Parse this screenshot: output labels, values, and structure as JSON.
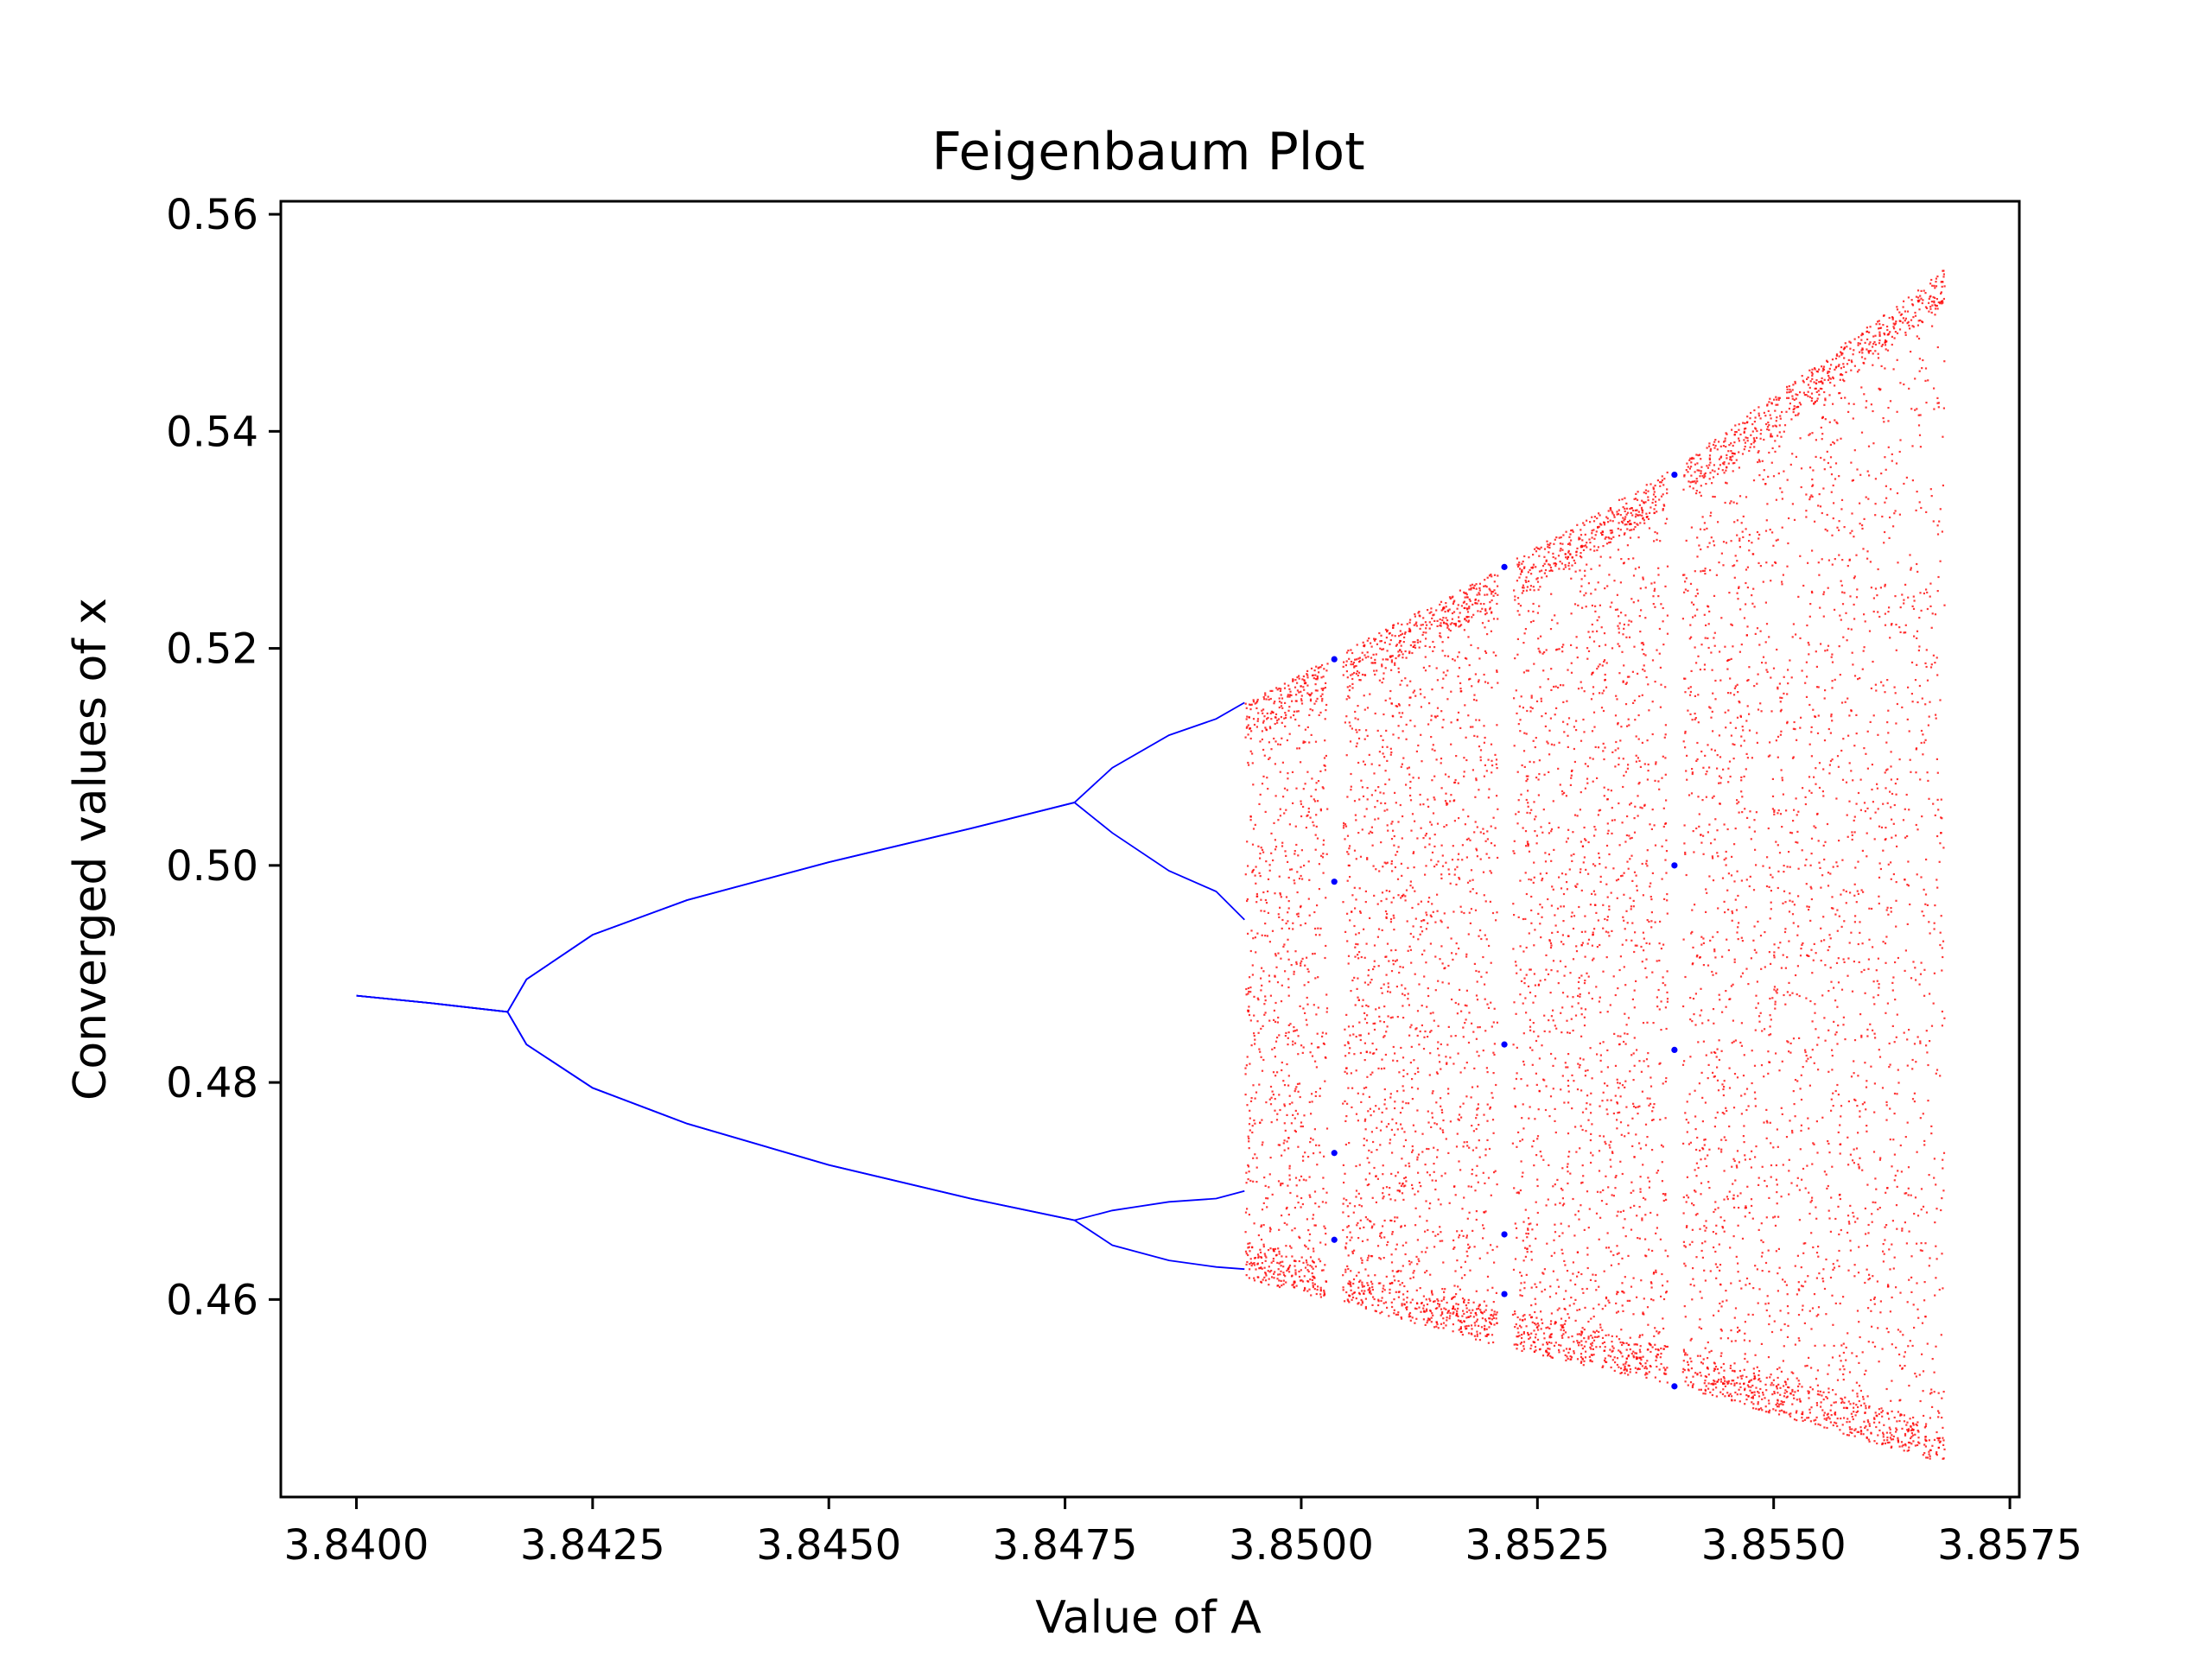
{
  "chart_data": {
    "type": "scatter",
    "title": "Feigenbaum Plot",
    "xlabel": "Value of A",
    "ylabel": "Converged values of x",
    "xlim": [
      3.8392,
      3.8576
    ],
    "ylim": [
      0.4418,
      0.5612
    ],
    "xticks": [
      3.84,
      3.8425,
      3.845,
      3.8475,
      3.85,
      3.8525,
      3.855,
      3.8575
    ],
    "xtick_labels": [
      "3.8400",
      "3.8425",
      "3.8450",
      "3.8475",
      "3.8500",
      "3.8525",
      "3.8550",
      "3.8575"
    ],
    "yticks": [
      0.46,
      0.48,
      0.5,
      0.52,
      0.54,
      0.56
    ],
    "ytick_labels": [
      "0.46",
      "0.48",
      "0.50",
      "0.52",
      "0.54",
      "0.56"
    ],
    "grid": false,
    "legend": "none",
    "colors": {
      "periodic": "#0000ff",
      "chaotic": "#ff0000"
    },
    "series": [
      {
        "color": "#0000ff",
        "description_visible": false,
        "x": [
          3.84,
          3.8408,
          3.8416,
          3.8418,
          3.8425,
          3.8435,
          3.845,
          3.8465,
          3.8476,
          3.848,
          3.8486,
          3.8491,
          3.8494
        ],
        "y_branches": [
          [
            0.488,
            0.4873,
            0.4865,
            0.4895,
            0.4936,
            0.4968,
            0.5003,
            0.5034,
            0.5058,
            0.509,
            0.512,
            0.5135,
            0.515
          ],
          [
            0.488,
            0.4873,
            0.4865,
            0.4835,
            0.4795,
            0.4762,
            0.4724,
            0.4693,
            0.4673,
            0.465,
            0.4636,
            0.463,
            0.4628
          ],
          [
            0.488,
            0.4873,
            0.4865,
            0.4895,
            0.4936,
            0.4968,
            0.5003,
            0.5034,
            0.5058,
            0.503,
            0.4995,
            0.4976,
            0.495
          ],
          [
            0.488,
            0.4873,
            0.4865,
            0.4835,
            0.4795,
            0.4762,
            0.4724,
            0.4693,
            0.4673,
            0.4682,
            0.469,
            0.4693,
            0.47
          ]
        ]
      },
      {
        "color": "#ff0000",
        "description_visible": false,
        "x_range": [
          3.8494,
          3.8568
        ],
        "upper_envelope": [
          [
            3.8494,
            0.515
          ],
          [
            3.852,
            0.527
          ],
          [
            3.854,
            0.537
          ],
          [
            3.8568,
            0.555
          ]
        ],
        "lower_envelope": [
          [
            3.8494,
            0.462
          ],
          [
            3.852,
            0.456
          ],
          [
            3.854,
            0.452
          ],
          [
            3.8568,
            0.445
          ]
        ],
        "windows": [
          {
            "x": 3.85035,
            "y": [
              0.4655,
              0.4735,
              0.4985,
              0.519
            ]
          },
          {
            "x": 3.85215,
            "y": [
              0.4605,
              0.466,
              0.4835,
              0.5275
            ]
          },
          {
            "x": 3.85395,
            "y": [
              0.452,
              0.483,
              0.5,
              0.536
            ]
          }
        ]
      }
    ]
  }
}
